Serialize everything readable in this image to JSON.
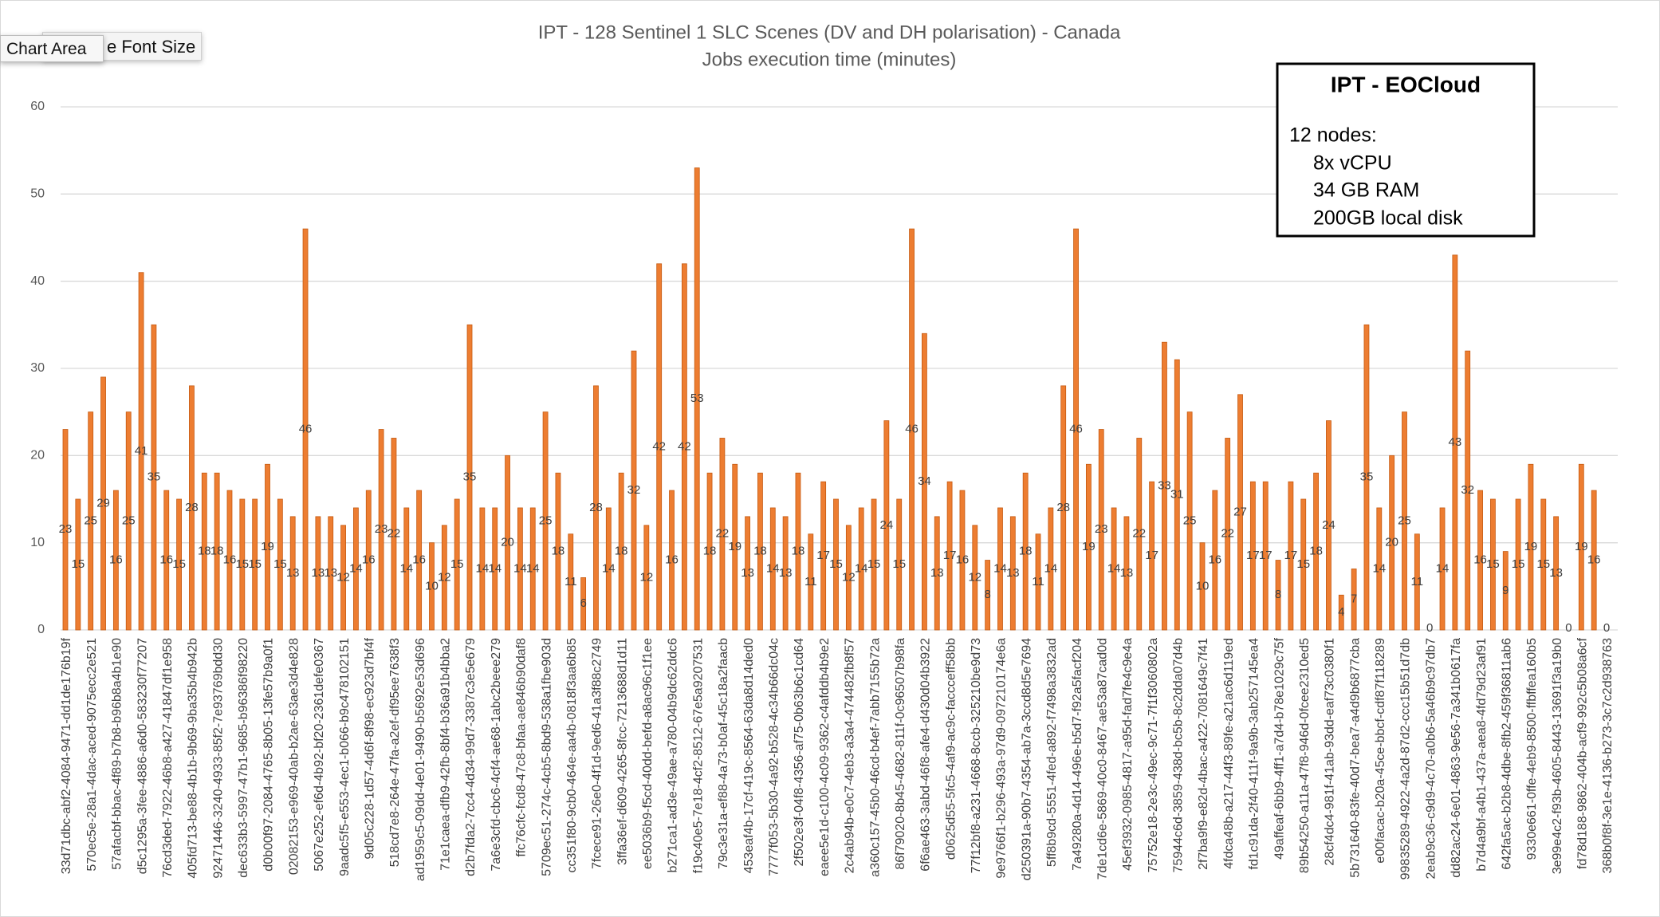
{
  "chart_data": {
    "type": "bar",
    "title": "IPT - 128 Sentinel 1 SLC Scenes (DV and DH polarisation) - Canada",
    "subtitle": "Jobs execution time (minutes)",
    "categories": [
      "33d71dbc-abf2-4084-9471-dd1de176b19f",
      null,
      "570ec5e-28a1-4dac-aced-9075ecc2e521",
      null,
      "57afacbf-bbac-4f89-b7b8-b96b8a4b1e90",
      null,
      "d5c1295a-3fee-4886-a6d0-583230f77207",
      null,
      "76cd3ded-7922-46b8-a427-41847df1e958",
      null,
      "405fd713-be88-4b1b-9b69-9ba35b4b942b",
      null,
      "92471446-3240-4933-85f2-7e93769bdd30",
      null,
      "dec633b3-5997-47b1-9685-b96386f98220",
      null,
      "d0b00f97-2084-4765-8b05-13fe57b9a0f1",
      null,
      "02082153-e969-40ab-b2ae-63ae3d4e828",
      null,
      "5067e252-ef6d-4b92-bf20-2361defe0367",
      null,
      "9aadc5f5-e553-4ec1-b066-b9c478102151",
      null,
      "9d05c228-1d57-4d6f-8f98-ec923d7bf4f",
      null,
      "518cd7e8-264e-47fa-a2ef-df95ee7638f3",
      null,
      "ad1959c5-09dd-4e01-9490-b5692e53d696",
      null,
      "71e1caea-dfb9-42fb-8bf4-b36a91b4bba2",
      null,
      "d2b7fda2-7cc4-4d34-99d7-3387c3e5e679",
      null,
      "7a6e3cfd-cbc6-4cf4-ae68-1abc2beee279",
      null,
      "ffc76cfc-fcd8-47c8-bfaa-ae846b90daf8",
      null,
      "5709ec51-274c-4cb5-8bd9-538a1fbe903d",
      null,
      "cc351f80-9cb0-464e-aa4b-0818f3aa6b85",
      null,
      "7fcece91-26e0-4f1d-9ed6-41a3f88c2749",
      null,
      "3ffa36ef-d609-4265-8fcc-7213688d1d11",
      null,
      "ee5036b9-f5cd-40dd-befd-a8ac96c1f1ee",
      null,
      "b271ca1-ad3e-49ae-a780-04b9dc62ddc6",
      null,
      "f19c40e5-7e18-4cf2-8512-67e5a9207531",
      null,
      "79c3e31a-ef88-4a73-b0af-45c18a2faacb",
      null,
      "453eaf4b-17cf-419c-8564-63da8d14ded0",
      null,
      "7777f053-5b30-4a92-b528-4c34b66dc04c",
      null,
      "2f502e3f-04f8-4356-af75-0b63b6c1cd64",
      null,
      "eaee5e1d-c100-4c09-9362-c4afddb4b9e2",
      null,
      "2c4ab94b-e0c7-4eb3-a3a4-474482fb8f57",
      null,
      "a360c157-45b0-46cd-b4ef-7abb7155b72a",
      null,
      "86f79020-8b45-4682-811f-0c96507b98fa",
      null,
      "6f6ae463-3abd-46f8-afe4-d430d04b3922",
      null,
      "d0625d55-5fc5-4af9-ac9c-faccceff58bb",
      null,
      "77f12bf8-a231-4668-8ccb-325210be9d73",
      null,
      "9e9766f1-b296-493a-97d9-097210174e6a",
      null,
      "d250391a-90b7-4354-ab7a-3ccd8d5e7694",
      null,
      "5ff8b9cd-5551-4fed-a892-f7498a3832ad",
      null,
      "7a49280a-4d14-496e-b5d7-f92a5facf204",
      null,
      "7de1cd6e-5869-40c0-8467-ae53a87cad0d",
      null,
      "45ef3932-0985-4817-a95d-fad7fe4c9e4a",
      null,
      "75752e18-2e3c-49ec-9c71-7f1f3060802a",
      null,
      "75944c6d-3859-438d-bc5b-8c2dda07d4b",
      null,
      "2f7ba9f9-e82d-4bac-a422-7081649c7f41",
      null,
      "4fdca48b-a217-44f3-89fe-a21ac6d119ed",
      null,
      "fd1c91da-2f40-411f-9a9b-3ab257145ea4",
      null,
      "49affeaf-6bb9-4ff1-a7d4-b78e1029c75f",
      null,
      "89b54250-a11a-47f8-946d-0fcee2310ed5",
      null,
      "28cf4dc4-981f-41ab-93dd-eaf73c0380f1",
      null,
      "5b731640-83fe-40d7-bea7-a4d9b6877cba",
      null,
      "e00facac-b20a-45ce-bbcf-cdf87f118289",
      null,
      "99835289-4922-4a2d-87d2-ccc15b51d7db",
      null,
      "2eab9c36-c9d9-4c70-a0b6-5a46b9c97db7",
      null,
      "dd82ac24-6e01-4863-9e56-7a341b0617fa",
      null,
      "b7d4a9bf-a4b1-437a-aea8-4fd79d23af91",
      null,
      "642fa5ac-b2b8-4dbe-8fb2-459f36811ab6",
      null,
      "9330e661-0ffe-4eb9-8500-ffbffea160b5",
      null,
      "3e99e4c2-f93b-4605-8443-13691f3a19b0",
      null,
      "fd78d188-9862-404b-acf9-992c5b08a6cf",
      null,
      "368b0f8f-3e1e-4136-b273-3c7c2d938763"
    ],
    "values": [
      23,
      15,
      25,
      29,
      16,
      25,
      41,
      35,
      16,
      15,
      28,
      18,
      18,
      16,
      15,
      15,
      19,
      15,
      13,
      46,
      13,
      13,
      12,
      14,
      16,
      23,
      22,
      14,
      16,
      10,
      12,
      15,
      35,
      14,
      14,
      20,
      14,
      14,
      25,
      18,
      11,
      6,
      28,
      14,
      18,
      32,
      12,
      42,
      16,
      42,
      53,
      18,
      22,
      19,
      13,
      18,
      14,
      13,
      18,
      11,
      17,
      15,
      12,
      14,
      15,
      24,
      15,
      46,
      34,
      13,
      17,
      16,
      12,
      8,
      14,
      13,
      18,
      11,
      14,
      28,
      46,
      19,
      23,
      14,
      13,
      22,
      17,
      33,
      31,
      25,
      10,
      16,
      22,
      27,
      17,
      17,
      8,
      17,
      15,
      18,
      24,
      4,
      7,
      35,
      14,
      20,
      25,
      11,
      0,
      14,
      43,
      32,
      16,
      15,
      9,
      15,
      19,
      15,
      13,
      0,
      19,
      16,
      0
    ],
    "color": "#ed7d31",
    "ylim": [
      0,
      60
    ],
    "yticks": [
      0,
      10,
      20,
      30,
      40,
      50,
      60
    ],
    "grid": true
  },
  "text_box": {
    "title": "IPT - EOCloud",
    "lines": [
      "12 nodes:",
      "8x vCPU",
      "34 GB RAM",
      "200GB local disk"
    ]
  },
  "ui": {
    "button": "e Font Size",
    "tooltip": "Chart Area"
  }
}
